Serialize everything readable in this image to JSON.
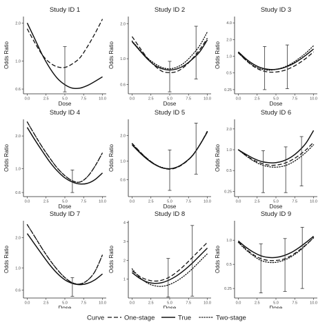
{
  "legend": {
    "title": "Curve",
    "items": [
      {
        "label": "One-stage",
        "dash": "6,3"
      },
      {
        "label": "True",
        "dash": ""
      },
      {
        "label": "Two-stage",
        "dash": "1.3,2.2"
      }
    ]
  },
  "chart_data": [
    {
      "type": "line",
      "title": "Study ID 1",
      "xlabel": "Dose",
      "ylabel": "Odds Ratio",
      "scale_y": "log",
      "xticks": [
        0.0,
        2.5,
        5.0,
        7.5,
        10.0
      ],
      "xtick_labels": [
        "0.0",
        "2.5",
        "5.0",
        "7.5",
        "10.0"
      ],
      "yticks": [
        0.6,
        1.0,
        2.0
      ],
      "ytick_labels": [
        "0.6",
        "1.0",
        "2.0"
      ],
      "xlim": [
        -0.5,
        10.5
      ],
      "ylim": [
        0.55,
        2.25
      ],
      "series": [
        {
          "name": "One-stage",
          "x": [
            0,
            1,
            2,
            3,
            4,
            5,
            6,
            7,
            8,
            9,
            10
          ],
          "y": [
            1.8,
            1.4,
            1.12,
            0.97,
            0.9,
            0.89,
            0.95,
            1.06,
            1.3,
            1.65,
            2.15
          ]
        },
        {
          "name": "True",
          "x": [
            0,
            1,
            2,
            3,
            4,
            5,
            6,
            7,
            8,
            9,
            10
          ],
          "y": [
            2.0,
            1.5,
            1.12,
            0.88,
            0.73,
            0.65,
            0.61,
            0.61,
            0.64,
            0.69,
            0.75
          ]
        }
      ],
      "error_bars": [
        {
          "x": 5.0,
          "low": 0.57,
          "high": 1.3
        }
      ]
    },
    {
      "type": "line",
      "title": "Study ID 2",
      "xlabel": "Dose",
      "ylabel": "Odds Ratio",
      "scale_y": "log",
      "xticks": [
        0.0,
        2.5,
        5.0,
        7.5,
        10.0
      ],
      "xtick_labels": [
        "0.0",
        "2.5",
        "5.0",
        "7.5",
        "10.0"
      ],
      "yticks": [
        0.6,
        1.0,
        2.0
      ],
      "ytick_labels": [
        "0.6",
        "1.0",
        "2.0"
      ],
      "xlim": [
        -0.5,
        10.5
      ],
      "ylim": [
        0.5,
        2.3
      ],
      "series": [
        {
          "name": "One-stage",
          "x": [
            0,
            1,
            2,
            3,
            4,
            5,
            6,
            7,
            8,
            9,
            10
          ],
          "y": [
            1.55,
            1.25,
            1.02,
            0.87,
            0.78,
            0.76,
            0.78,
            0.86,
            1.0,
            1.2,
            1.5
          ]
        },
        {
          "name": "True",
          "x": [
            0,
            1,
            2,
            3,
            4,
            5,
            6,
            7,
            8,
            9,
            10
          ],
          "y": [
            1.4,
            1.18,
            1.0,
            0.88,
            0.82,
            0.8,
            0.82,
            0.88,
            0.99,
            1.15,
            1.45
          ]
        },
        {
          "name": "Two-stage",
          "x": [
            0,
            1,
            2,
            3,
            4,
            5,
            6,
            7,
            8,
            9,
            10
          ],
          "y": [
            1.42,
            1.2,
            1.02,
            0.91,
            0.84,
            0.82,
            0.85,
            0.93,
            1.08,
            1.3,
            1.7
          ]
        }
      ],
      "error_bars": [
        {
          "x": 5.0,
          "low": 0.52,
          "high": 0.95
        },
        {
          "x": 8.5,
          "low": 0.67,
          "high": 1.9
        }
      ]
    },
    {
      "type": "line",
      "title": "Study ID 3",
      "xlabel": "Dose",
      "ylabel": "Odds Ratio",
      "scale_y": "log",
      "xticks": [
        0.0,
        2.5,
        5.0,
        7.5,
        10.0
      ],
      "xtick_labels": [
        "0.0",
        "2.5",
        "5.0",
        "7.5",
        "10.0"
      ],
      "yticks": [
        0.25,
        0.5,
        1.0,
        2.0,
        4.0
      ],
      "ytick_labels": [
        "0.25",
        "0.5",
        "1.0",
        "2.0",
        "4.0"
      ],
      "xlim": [
        -0.5,
        10.5
      ],
      "ylim": [
        0.21,
        5.2
      ],
      "series": [
        {
          "name": "One-stage",
          "x": [
            0,
            1,
            2,
            3,
            4,
            5,
            6,
            7,
            8,
            9,
            10
          ],
          "y": [
            1.15,
            0.85,
            0.66,
            0.56,
            0.52,
            0.52,
            0.55,
            0.62,
            0.74,
            0.92,
            1.2
          ]
        },
        {
          "name": "True",
          "x": [
            0,
            1,
            2,
            3,
            4,
            5,
            6,
            7,
            8,
            9,
            10
          ],
          "y": [
            1.2,
            0.9,
            0.72,
            0.62,
            0.58,
            0.58,
            0.62,
            0.7,
            0.84,
            1.05,
            1.35
          ]
        },
        {
          "name": "Two-stage",
          "x": [
            0,
            1,
            2,
            3,
            4,
            5,
            6,
            7,
            8,
            9,
            10
          ],
          "y": [
            1.15,
            0.86,
            0.68,
            0.59,
            0.56,
            0.58,
            0.63,
            0.73,
            0.9,
            1.15,
            1.55
          ]
        }
      ],
      "error_bars": [
        {
          "x": 3.5,
          "low": 0.25,
          "high": 1.5
        },
        {
          "x": 6.5,
          "low": 0.26,
          "high": 1.6
        }
      ]
    },
    {
      "type": "line",
      "title": "Study ID 4",
      "xlabel": "Dose",
      "ylabel": "Odds Ratio",
      "scale_y": "log",
      "xticks": [
        0.0,
        2.5,
        5.0,
        7.5,
        10.0
      ],
      "xtick_labels": [
        "0.0",
        "2.5",
        "5.0",
        "7.5",
        "10.0"
      ],
      "yticks": [
        0.6,
        1.0,
        2.0
      ],
      "ytick_labels": [
        "0.6",
        "1.0",
        "2.0"
      ],
      "xlim": [
        -0.5,
        10.5
      ],
      "ylim": [
        0.55,
        2.85
      ],
      "series": [
        {
          "name": "One-stage",
          "x": [
            0,
            1,
            2,
            3,
            4,
            5,
            6,
            7,
            8,
            9,
            10
          ],
          "y": [
            2.7,
            2.05,
            1.58,
            1.25,
            1.01,
            0.86,
            0.77,
            0.75,
            0.84,
            1.05,
            1.4
          ]
        },
        {
          "name": "True",
          "x": [
            0,
            1,
            2,
            3,
            4,
            5,
            6,
            7,
            8,
            9,
            10
          ],
          "y": [
            2.4,
            1.85,
            1.45,
            1.15,
            0.95,
            0.82,
            0.75,
            0.72,
            0.73,
            0.79,
            0.91
          ]
        },
        {
          "name": "Two-stage",
          "x": [
            0,
            1,
            2,
            3,
            4,
            5,
            6,
            7,
            8,
            9,
            10
          ],
          "y": [
            2.7,
            2.05,
            1.58,
            1.25,
            1.01,
            0.86,
            0.77,
            0.75,
            0.84,
            1.05,
            1.4
          ]
        }
      ],
      "error_bars": [
        {
          "x": 6.0,
          "low": 0.6,
          "high": 0.97
        }
      ]
    },
    {
      "type": "line",
      "title": "Study ID 5",
      "xlabel": "Dose",
      "ylabel": "Odds Ratio",
      "scale_y": "log",
      "xticks": [
        0.0,
        2.5,
        5.0,
        7.5,
        10.0
      ],
      "xtick_labels": [
        "0.0",
        "2.5",
        "5.0",
        "7.5",
        "10.0"
      ],
      "yticks": [
        0.6,
        1.0,
        2.0
      ],
      "ytick_labels": [
        "0.6",
        "1.0",
        "2.0"
      ],
      "xlim": [
        -0.5,
        10.5
      ],
      "ylim": [
        0.38,
        3.1
      ],
      "series": [
        {
          "name": "One-stage",
          "x": [
            0,
            1,
            2,
            3,
            4,
            5,
            6,
            7,
            8,
            9,
            10
          ],
          "y": [
            1.62,
            1.3,
            1.07,
            0.92,
            0.83,
            0.8,
            0.84,
            0.95,
            1.15,
            1.55,
            2.25
          ]
        },
        {
          "name": "True",
          "x": [
            0,
            1,
            2,
            3,
            4,
            5,
            6,
            7,
            8,
            9,
            10
          ],
          "y": [
            1.55,
            1.26,
            1.05,
            0.91,
            0.83,
            0.81,
            0.85,
            0.96,
            1.15,
            1.55,
            2.2
          ]
        },
        {
          "name": "Two-stage",
          "x": [
            0,
            1,
            2,
            3,
            4,
            5,
            6,
            7,
            8,
            9,
            10
          ],
          "y": [
            1.6,
            1.29,
            1.07,
            0.92,
            0.84,
            0.81,
            0.85,
            0.96,
            1.16,
            1.56,
            2.22
          ]
        }
      ],
      "error_bars": [
        {
          "x": 5.0,
          "low": 0.45,
          "high": 1.35
        },
        {
          "x": 8.5,
          "low": 0.7,
          "high": 2.8
        }
      ]
    },
    {
      "type": "line",
      "title": "Study ID 6",
      "xlabel": "Dose",
      "ylabel": "Odds Ratio",
      "scale_y": "log",
      "xticks": [
        0.0,
        2.5,
        5.0,
        7.5,
        10.0
      ],
      "xtick_labels": [
        "0.0",
        "2.5",
        "5.0",
        "7.5",
        "10.0"
      ],
      "yticks": [
        0.25,
        0.5,
        1.0,
        2.0
      ],
      "ytick_labels": [
        "0.25",
        "0.5",
        "1.0",
        "2.0"
      ],
      "xlim": [
        -0.5,
        10.5
      ],
      "ylim": [
        0.21,
        2.75
      ],
      "series": [
        {
          "name": "One-stage",
          "x": [
            0,
            1,
            2,
            3,
            4,
            5,
            6,
            7,
            8,
            9,
            10
          ],
          "y": [
            1.0,
            0.83,
            0.71,
            0.64,
            0.6,
            0.6,
            0.63,
            0.7,
            0.82,
            1.0,
            1.28
          ]
        },
        {
          "name": "True",
          "x": [
            0,
            1,
            2,
            3,
            4,
            5,
            6,
            7,
            8,
            9,
            10
          ],
          "y": [
            1.0,
            0.86,
            0.75,
            0.68,
            0.65,
            0.65,
            0.69,
            0.78,
            0.95,
            1.25,
            1.9
          ]
        },
        {
          "name": "Two-stage",
          "x": [
            0,
            1,
            2,
            3,
            4,
            5,
            6,
            7,
            8,
            9,
            10
          ],
          "y": [
            1.0,
            0.82,
            0.69,
            0.61,
            0.57,
            0.56,
            0.58,
            0.64,
            0.75,
            0.92,
            1.18
          ]
        }
      ],
      "error_bars": [
        {
          "x": 3.3,
          "low": 0.24,
          "high": 0.97
        },
        {
          "x": 6.3,
          "low": 0.24,
          "high": 1.1
        },
        {
          "x": 8.4,
          "low": 0.3,
          "high": 1.55
        }
      ]
    },
    {
      "type": "line",
      "title": "Study ID 7",
      "xlabel": "Dose",
      "ylabel": "Odds Ratio",
      "scale_y": "log",
      "xticks": [
        0.0,
        2.5,
        5.0,
        7.5,
        10.0
      ],
      "xtick_labels": [
        "0.0",
        "2.5",
        "5.0",
        "7.5",
        "10.0"
      ],
      "yticks": [
        0.6,
        1.0,
        2.0
      ],
      "ytick_labels": [
        "0.6",
        "1.0",
        "2.0"
      ],
      "xlim": [
        -0.5,
        10.5
      ],
      "ylim": [
        0.5,
        2.95
      ],
      "series": [
        {
          "name": "One-stage",
          "x": [
            0,
            1,
            2,
            3,
            4,
            5,
            6,
            7,
            8,
            9,
            10
          ],
          "y": [
            2.7,
            2.05,
            1.55,
            1.2,
            0.96,
            0.8,
            0.71,
            0.69,
            0.75,
            0.92,
            1.35
          ]
        },
        {
          "name": "True",
          "x": [
            0,
            1,
            2,
            3,
            4,
            5,
            6,
            7,
            8,
            9,
            10
          ],
          "y": [
            2.2,
            1.72,
            1.35,
            1.07,
            0.88,
            0.76,
            0.7,
            0.68,
            0.7,
            0.76,
            0.87
          ]
        },
        {
          "name": "Two-stage",
          "x": [
            0,
            1,
            2,
            3,
            4,
            5,
            6,
            7,
            8,
            9,
            10
          ],
          "y": [
            2.7,
            2.05,
            1.55,
            1.2,
            0.96,
            0.8,
            0.71,
            0.69,
            0.75,
            0.92,
            1.35
          ]
        }
      ],
      "error_bars": [
        {
          "x": 6.0,
          "low": 0.52,
          "high": 0.8
        }
      ]
    },
    {
      "type": "line",
      "title": "Study ID 8",
      "xlabel": "Dose",
      "ylabel": "Odds Ratio",
      "scale_y": "linear",
      "xticks": [
        0.0,
        2.5,
        5.0,
        7.5,
        10.0
      ],
      "xtick_labels": [
        "0.0",
        "2.5",
        "5.0",
        "7.5",
        "10.0"
      ],
      "yticks": [
        1,
        2,
        3,
        4
      ],
      "ytick_labels": [
        "1",
        "2",
        "3",
        "4"
      ],
      "xlim": [
        -0.5,
        10.5
      ],
      "ylim": [
        0.0,
        4.1
      ],
      "series": [
        {
          "name": "One-stage",
          "x": [
            0,
            1,
            2,
            3,
            4,
            5,
            6,
            7,
            8,
            9,
            10
          ],
          "y": [
            1.45,
            1.15,
            0.97,
            0.9,
            0.95,
            1.12,
            1.4,
            1.75,
            2.15,
            2.55,
            2.95
          ]
        },
        {
          "name": "True",
          "x": [
            0,
            1,
            2,
            3,
            4,
            5,
            6,
            7,
            8,
            9,
            10
          ],
          "y": [
            1.35,
            1.05,
            0.85,
            0.78,
            0.82,
            0.97,
            1.2,
            1.5,
            1.85,
            2.25,
            2.65
          ]
        },
        {
          "name": "Two-stage",
          "x": [
            0,
            1,
            2,
            3,
            4,
            5,
            6,
            7,
            8,
            9,
            10
          ],
          "y": [
            1.55,
            1.1,
            0.8,
            0.65,
            0.62,
            0.72,
            0.92,
            1.2,
            1.55,
            1.95,
            2.35
          ]
        }
      ],
      "error_bars": [
        {
          "x": 4.8,
          "low": 0.05,
          "high": 2.1
        },
        {
          "x": 8.0,
          "low": 0.1,
          "high": 3.85
        }
      ]
    },
    {
      "type": "line",
      "title": "Study ID 9",
      "xlabel": "Dose",
      "ylabel": "Odds Ratio",
      "scale_y": "log",
      "xticks": [
        0.0,
        2.5,
        5.0,
        7.5,
        10.0
      ],
      "xtick_labels": [
        "0.0",
        "2.5",
        "5.0",
        "7.5",
        "10.0"
      ],
      "yticks": [
        0.25,
        0.5,
        1.0
      ],
      "ytick_labels": [
        "0.25",
        "0.5",
        "1.0"
      ],
      "xlim": [
        -0.5,
        10.5
      ],
      "ylim": [
        0.19,
        1.75
      ],
      "series": [
        {
          "name": "One-stage",
          "x": [
            0,
            1,
            2,
            3,
            4,
            5,
            6,
            7,
            8,
            9,
            10
          ],
          "y": [
            0.95,
            0.78,
            0.66,
            0.59,
            0.56,
            0.56,
            0.58,
            0.64,
            0.74,
            0.88,
            1.07
          ]
        },
        {
          "name": "True",
          "x": [
            0,
            1,
            2,
            3,
            4,
            5,
            6,
            7,
            8,
            9,
            10
          ],
          "y": [
            0.98,
            0.82,
            0.71,
            0.64,
            0.61,
            0.61,
            0.64,
            0.7,
            0.8,
            0.94,
            1.12
          ]
        },
        {
          "name": "Two-stage",
          "x": [
            0,
            1,
            2,
            3,
            4,
            5,
            6,
            7,
            8,
            9,
            10
          ],
          "y": [
            0.94,
            0.76,
            0.64,
            0.56,
            0.53,
            0.53,
            0.56,
            0.62,
            0.72,
            0.87,
            1.08
          ]
        }
      ],
      "error_bars": [
        {
          "x": 3.0,
          "low": 0.22,
          "high": 0.9
        },
        {
          "x": 6.2,
          "low": 0.23,
          "high": 1.05
        },
        {
          "x": 8.5,
          "low": 0.25,
          "high": 1.45
        }
      ]
    }
  ]
}
